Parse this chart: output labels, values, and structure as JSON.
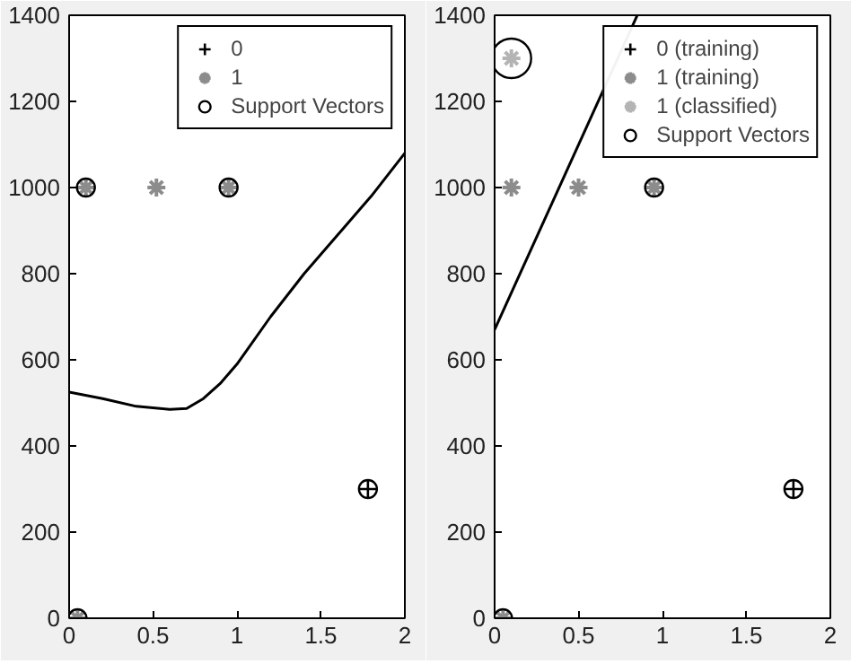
{
  "chart_data": [
    {
      "type": "scatter",
      "xlim": [
        0,
        2
      ],
      "ylim": [
        0,
        1400
      ],
      "xticks": [
        0,
        0.5,
        1,
        1.5,
        2
      ],
      "yticks": [
        0,
        200,
        400,
        600,
        800,
        1000,
        1200,
        1400
      ],
      "grid": false,
      "legend": "top right",
      "series": [
        {
          "name": "0",
          "color": "#000000",
          "marker": "cross",
          "x": [
            1.78
          ],
          "values": [
            300
          ]
        },
        {
          "name": "1",
          "color": "#8c8c8c",
          "marker": "cross",
          "x": [
            0.1,
            0.52,
            0.95,
            0.05
          ],
          "values": [
            1000,
            1000,
            1000,
            0
          ]
        },
        {
          "name": "Support Vectors",
          "color": "#000000",
          "marker": "circle",
          "x": [
            0.1,
            0.95,
            0.05,
            1.78
          ],
          "values": [
            1000,
            1000,
            0,
            300
          ]
        },
        {
          "type": "line",
          "color": "#000000",
          "marker": "none",
          "x": [
            0,
            0.2,
            0.4,
            0.6,
            0.7,
            0.8,
            0.9,
            1.0,
            1.2,
            1.4,
            1.6,
            1.8,
            2.0
          ],
          "values": [
            525,
            510,
            492,
            485,
            487,
            510,
            545,
            590,
            700,
            800,
            890,
            980,
            1080
          ]
        }
      ]
    },
    {
      "type": "scatter",
      "xlim": [
        0,
        2
      ],
      "ylim": [
        0,
        1400
      ],
      "xticks": [
        0,
        0.5,
        1,
        1.5,
        2
      ],
      "yticks": [
        0,
        200,
        400,
        600,
        800,
        1000,
        1200,
        1400
      ],
      "grid": false,
      "legend": "top right",
      "series": [
        {
          "name": "0 (training)",
          "color": "#000000",
          "marker": "cross",
          "x": [
            1.78
          ],
          "values": [
            300
          ]
        },
        {
          "name": "1 (training)",
          "color": "#8c8c8c",
          "marker": "cross",
          "x": [
            0.1,
            0.5,
            0.95,
            0.05
          ],
          "values": [
            1000,
            1000,
            1000,
            0
          ]
        },
        {
          "name": "1 (classified)",
          "color": "#b4b4b4",
          "marker": "cross",
          "x": [
            0.1
          ],
          "values": [
            1300
          ]
        },
        {
          "name": "Support Vectors",
          "color": "#000000",
          "marker": "circle",
          "x": [
            0.95,
            0.05,
            1.78
          ],
          "values": [
            1000,
            0,
            300
          ]
        },
        {
          "color": "#000000",
          "marker": "circle",
          "x": [
            0.1
          ],
          "values": [
            1300
          ]
        },
        {
          "type": "line",
          "color": "#000000",
          "marker": "none",
          "x": [
            0,
            0.85
          ],
          "values": [
            670,
            1400
          ]
        }
      ]
    }
  ]
}
